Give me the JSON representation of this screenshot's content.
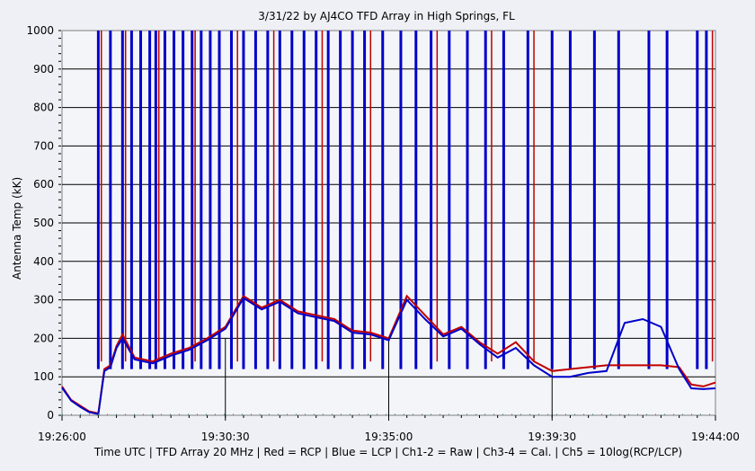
{
  "chart_data": {
    "type": "line",
    "title": "3/31/22  by  AJ4CO TFD Array  in  High Springs, FL",
    "ylabel": "Antenna Temp (kK)",
    "xlabel": "Time UTC | TFD Array 20 MHz | Red = RCP | Blue = LCP | Ch1-2 = Raw | Ch3-4 = Cal. | Ch5 = 10log(RCP/LCP)",
    "ylim": [
      0,
      1000
    ],
    "yticks": [
      "0",
      "100",
      "200",
      "300",
      "400",
      "500",
      "600",
      "700",
      "800",
      "900",
      "1000"
    ],
    "xlim": [
      "19:26:00",
      "19:44:00"
    ],
    "xticks": [
      "19:26:00",
      "19:30:30",
      "19:35:00",
      "19:39:30",
      "19:44:00"
    ],
    "grid": true,
    "colors": {
      "rcp": "#c00000",
      "lcp": "#0000c8",
      "ch5": "#2a8a8a",
      "plot_bg": "#f4f5f9"
    },
    "series": [
      {
        "name": "RCP",
        "x": [
          "19:26:00",
          "19:26:15",
          "19:26:30",
          "19:26:45",
          "19:27:00",
          "19:27:10",
          "19:27:20",
          "19:27:30",
          "19:27:40",
          "19:28:00",
          "19:28:30",
          "19:29:00",
          "19:29:30",
          "19:30:00",
          "19:30:30",
          "19:31:00",
          "19:31:30",
          "19:32:00",
          "19:32:30",
          "19:33:00",
          "19:33:30",
          "19:34:00",
          "19:34:30",
          "19:35:00",
          "19:35:30",
          "19:36:00",
          "19:36:30",
          "19:37:00",
          "19:37:30",
          "19:38:00",
          "19:38:30",
          "19:39:00",
          "19:39:30",
          "19:40:00",
          "19:40:30",
          "19:41:00",
          "19:41:30",
          "19:42:00",
          "19:42:30",
          "19:43:00",
          "19:43:20",
          "19:43:40",
          "19:44:00"
        ],
        "values": [
          75,
          40,
          25,
          10,
          5,
          120,
          130,
          180,
          210,
          150,
          140,
          160,
          175,
          200,
          230,
          310,
          280,
          300,
          270,
          260,
          250,
          220,
          215,
          200,
          310,
          260,
          210,
          230,
          190,
          160,
          190,
          140,
          115,
          120,
          125,
          130,
          130,
          130,
          130,
          125,
          80,
          75,
          85
        ]
      },
      {
        "name": "LCP",
        "x": [
          "19:26:00",
          "19:26:15",
          "19:26:30",
          "19:26:45",
          "19:27:00",
          "19:27:10",
          "19:27:20",
          "19:27:30",
          "19:27:40",
          "19:28:00",
          "19:28:30",
          "19:29:00",
          "19:29:30",
          "19:30:00",
          "19:30:30",
          "19:31:00",
          "19:31:30",
          "19:32:00",
          "19:32:30",
          "19:33:00",
          "19:33:30",
          "19:34:00",
          "19:34:30",
          "19:35:00",
          "19:35:30",
          "19:36:00",
          "19:36:30",
          "19:37:00",
          "19:37:30",
          "19:38:00",
          "19:38:30",
          "19:39:00",
          "19:39:30",
          "19:40:00",
          "19:40:30",
          "19:41:00",
          "19:41:30",
          "19:42:00",
          "19:42:30",
          "19:43:00",
          "19:43:20",
          "19:43:40",
          "19:44:00"
        ],
        "values": [
          72,
          38,
          22,
          8,
          3,
          115,
          125,
          175,
          200,
          145,
          135,
          155,
          170,
          195,
          225,
          305,
          275,
          295,
          265,
          255,
          245,
          215,
          210,
          195,
          300,
          250,
          205,
          225,
          185,
          150,
          175,
          130,
          100,
          100,
          110,
          115,
          240,
          250,
          230,
          120,
          70,
          68,
          70
        ]
      }
    ],
    "bursts_lcp": [
      "19:27:00",
      "19:27:20",
      "19:27:40",
      "19:27:55",
      "19:28:10",
      "19:28:25",
      "19:28:35",
      "19:28:50",
      "19:29:05",
      "19:29:20",
      "19:29:35",
      "19:29:50",
      "19:30:05",
      "19:30:20",
      "19:30:40",
      "19:31:00",
      "19:31:20",
      "19:31:40",
      "19:32:00",
      "19:32:20",
      "19:32:40",
      "19:33:00",
      "19:33:20",
      "19:33:40",
      "19:34:00",
      "19:34:20",
      "19:34:50",
      "19:35:20",
      "19:35:45",
      "19:36:10",
      "19:36:40",
      "19:37:10",
      "19:37:40",
      "19:38:10",
      "19:38:50",
      "19:39:30",
      "19:40:00",
      "19:40:40",
      "19:41:20",
      "19:42:10",
      "19:42:40",
      "19:43:30",
      "19:43:45"
    ],
    "bursts_rcp": [
      "19:27:05",
      "19:27:45",
      "19:28:40",
      "19:29:40",
      "19:30:50",
      "19:31:50",
      "19:33:10",
      "19:34:30",
      "19:36:20",
      "19:37:50",
      "19:39:00",
      "19:43:55"
    ]
  }
}
